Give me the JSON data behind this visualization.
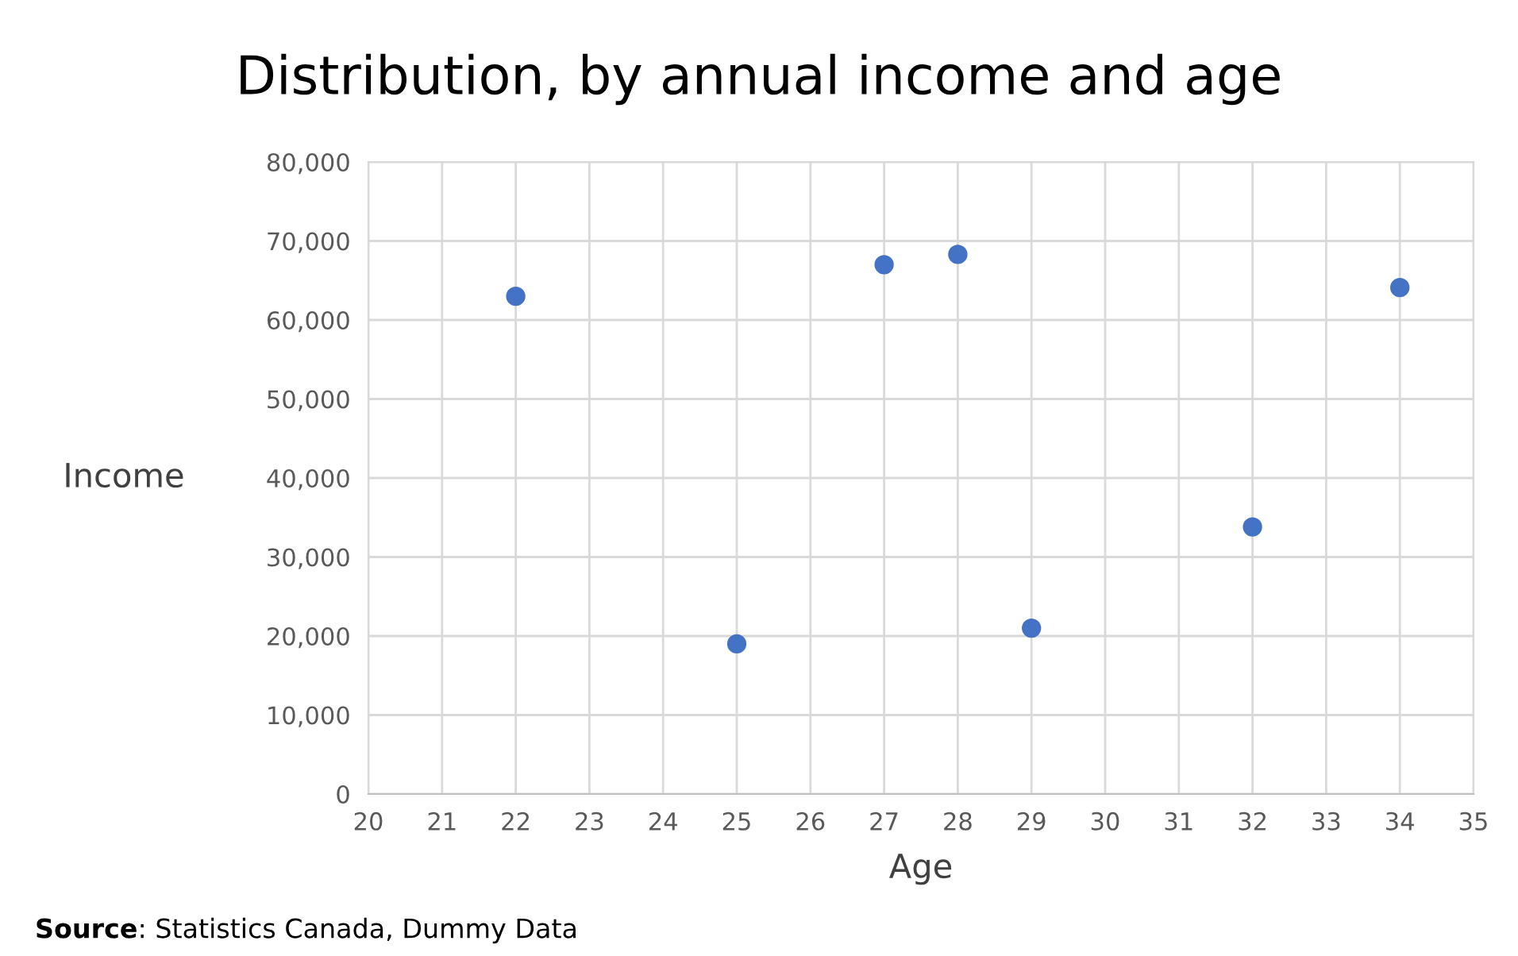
{
  "chart_data": {
    "type": "scatter",
    "title": "Distribution, by annual income and age",
    "xlabel": "Age",
    "ylabel": "Income",
    "x": [
      22,
      25,
      27,
      28,
      29,
      32,
      34
    ],
    "series": [
      {
        "color": "#4472c4",
        "values": [
          63000,
          19000,
          67000,
          68300,
          21000,
          33800,
          64100
        ]
      }
    ],
    "xlim": [
      20,
      35
    ],
    "xticks": [
      20,
      21,
      22,
      23,
      24,
      25,
      26,
      27,
      28,
      29,
      30,
      31,
      32,
      33,
      34,
      35
    ],
    "ylim": [
      0,
      80000
    ],
    "yticks": [
      0,
      {
        "value": 10000,
        "label": "10,000"
      },
      {
        "value": 20000,
        "label": "20,000"
      },
      {
        "value": 30000,
        "label": "30,000"
      },
      {
        "value": 40000,
        "label": "40,000"
      },
      {
        "value": 50000,
        "label": "50,000"
      },
      {
        "value": 60000,
        "label": "60,000"
      },
      {
        "value": 70000,
        "label": "70,000"
      },
      {
        "value": 80000,
        "label": "80,000"
      }
    ],
    "grid": true,
    "marker": "circle",
    "annotations": [
      "Source: Statistics Canada, Dummy Data"
    ]
  }
}
